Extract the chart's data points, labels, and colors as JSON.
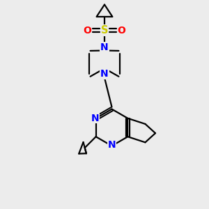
{
  "background_color": "#ececec",
  "bond_color": "#000000",
  "nitrogen_color": "#0000ff",
  "oxygen_color": "#ff0000",
  "sulfur_color": "#cccc00",
  "line_width": 1.6,
  "figsize": [
    3.0,
    3.0
  ],
  "dpi": 100,
  "xlim": [
    0,
    10
  ],
  "ylim": [
    0,
    10
  ]
}
